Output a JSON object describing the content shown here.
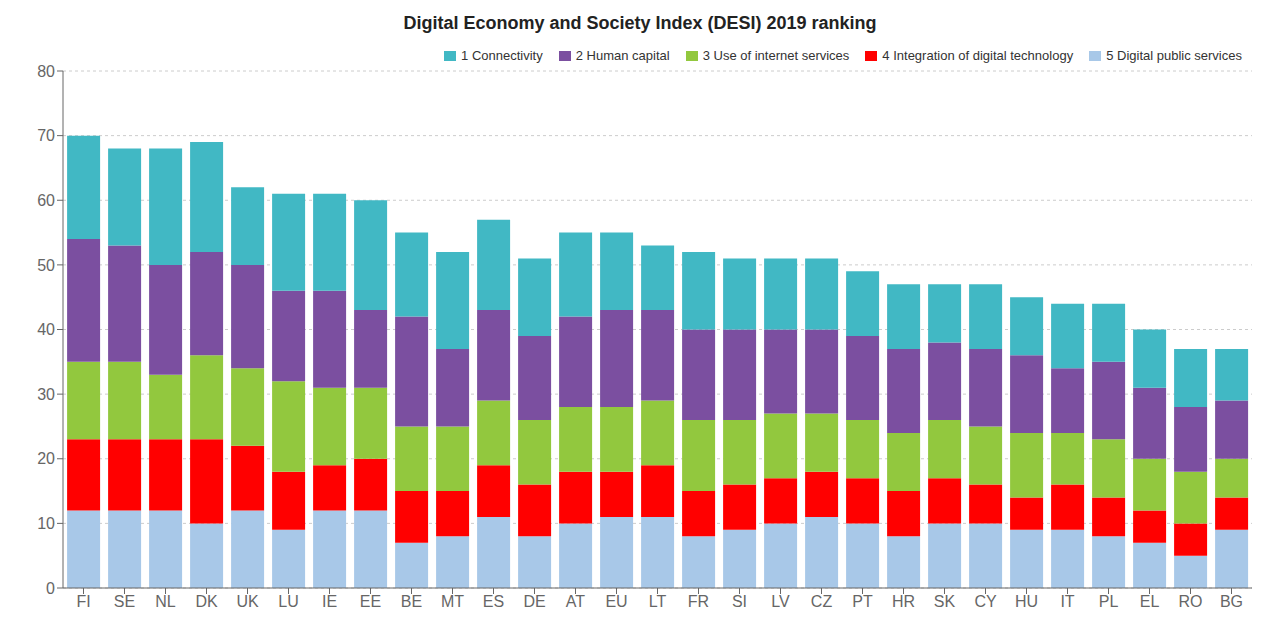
{
  "chart_data": {
    "type": "bar",
    "title": "Digital Economy and Society Index (DESI) 2019 ranking",
    "stacked": true,
    "grid": true,
    "legend": "upper right",
    "categories": [
      "FI",
      "SE",
      "NL",
      "DK",
      "UK",
      "LU",
      "IE",
      "EE",
      "BE",
      "MT",
      "ES",
      "DE",
      "AT",
      "EU",
      "LT",
      "FR",
      "SI",
      "LV",
      "CZ",
      "PT",
      "HR",
      "SK",
      "CY",
      "HU",
      "IT",
      "PL",
      "EL",
      "RO",
      "BG"
    ],
    "series": [
      {
        "name": "5 Digital public services",
        "color": "#A8C8E8",
        "values": [
          12,
          12,
          12,
          10,
          12,
          9,
          12,
          12,
          7,
          8,
          11,
          8,
          10,
          11,
          11,
          8,
          9,
          10,
          11,
          10,
          8,
          10,
          10,
          9,
          9,
          8,
          7,
          5,
          9
        ]
      },
      {
        "name": "4 Integration of digital technology",
        "color": "#FF0000",
        "values": [
          11,
          11,
          11,
          13,
          10,
          9,
          7,
          8,
          8,
          7,
          8,
          8,
          8,
          7,
          8,
          7,
          7,
          7,
          7,
          7,
          7,
          7,
          6,
          5,
          7,
          6,
          5,
          5,
          5
        ]
      },
      {
        "name": "3 Use of internet services",
        "color": "#92C83E",
        "values": [
          12,
          12,
          10,
          13,
          12,
          14,
          12,
          11,
          10,
          10,
          10,
          10,
          10,
          10,
          10,
          11,
          10,
          10,
          9,
          9,
          9,
          9,
          9,
          10,
          8,
          9,
          8,
          8,
          6
        ]
      },
      {
        "name": "2 Human capital",
        "color": "#7B4FA0",
        "values": [
          19,
          18,
          17,
          16,
          16,
          14,
          15,
          12,
          17,
          12,
          14,
          13,
          14,
          15,
          14,
          14,
          14,
          13,
          13,
          13,
          13,
          12,
          12,
          12,
          10,
          12,
          11,
          10,
          9
        ]
      },
      {
        "name": "1 Connectivity",
        "color": "#41B8C4",
        "values": [
          16,
          15,
          18,
          17,
          12,
          15,
          15,
          17,
          13,
          15,
          14,
          12,
          13,
          12,
          10,
          12,
          11,
          11,
          11,
          10,
          10,
          9,
          10,
          9,
          10,
          9,
          9,
          9,
          8
        ]
      }
    ],
    "ylim": [
      0,
      80
    ],
    "yticks": [
      0,
      10,
      20,
      30,
      40,
      50,
      60,
      70,
      80
    ]
  }
}
